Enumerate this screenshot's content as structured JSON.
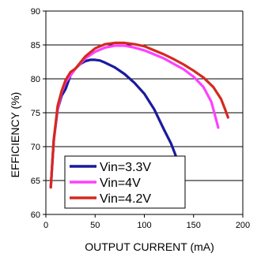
{
  "chart_data": {
    "type": "line",
    "title": "",
    "xlabel": "OUTPUT CURRENT (mA)",
    "ylabel": "EFFICIENCY (%)",
    "xlim": [
      0,
      200
    ],
    "ylim": [
      60,
      90
    ],
    "xticks": [
      0,
      50,
      100,
      150,
      200
    ],
    "yticks": [
      60,
      65,
      70,
      75,
      80,
      85,
      90
    ],
    "grid": "horizontal",
    "legend_position": "bottom-center",
    "series": [
      {
        "name": "Vin=3.3V",
        "color": "#1a1a9e",
        "x": [
          5,
          8,
          12,
          16,
          20,
          25,
          30,
          35,
          40,
          45,
          50,
          55,
          60,
          70,
          80,
          90,
          100,
          110,
          120,
          127,
          131,
          134
        ],
        "y": [
          64,
          71,
          75.5,
          77.5,
          78.5,
          80.5,
          81.5,
          82.2,
          82.6,
          82.8,
          82.8,
          82.7,
          82.4,
          81.7,
          80.7,
          79.4,
          77.8,
          75.5,
          72.5,
          70.5,
          69,
          67.8
        ]
      },
      {
        "name": "Vin=4V",
        "color": "#ff40ff",
        "x": [
          5,
          8,
          12,
          16,
          20,
          25,
          30,
          40,
          50,
          60,
          70,
          80,
          90,
          100,
          110,
          120,
          130,
          140,
          150,
          160,
          168,
          172,
          175
        ],
        "y": [
          64,
          71,
          75.5,
          78,
          79.5,
          80.5,
          81.5,
          83,
          84,
          84.6,
          84.9,
          84.9,
          84.6,
          84.2,
          83.6,
          83,
          82.2,
          81.4,
          80.3,
          78.8,
          76.6,
          74.5,
          72.8
        ]
      },
      {
        "name": "Vin=4.2V",
        "color": "#d42a1f",
        "x": [
          5,
          8,
          12,
          16,
          20,
          25,
          30,
          40,
          50,
          60,
          70,
          80,
          90,
          100,
          110,
          120,
          130,
          140,
          150,
          160,
          170,
          178,
          182,
          185
        ],
        "y": [
          64,
          71,
          76,
          78.2,
          79.8,
          81,
          81.5,
          83.3,
          84.5,
          85.1,
          85.3,
          85.3,
          85.1,
          84.8,
          84.2,
          83.6,
          82.9,
          82.1,
          81.2,
          80.2,
          78.8,
          77,
          75.5,
          74.3
        ]
      }
    ]
  }
}
